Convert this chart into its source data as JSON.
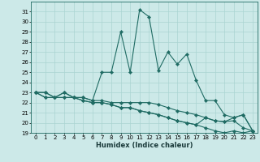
{
  "xlabel": "Humidex (Indice chaleur)",
  "bg_color": "#cce9e8",
  "line_color": "#1f6b63",
  "grid_color": "#aad4d2",
  "x_values": [
    0,
    1,
    2,
    3,
    4,
    5,
    6,
    7,
    8,
    9,
    10,
    11,
    12,
    13,
    14,
    15,
    16,
    17,
    18,
    19,
    20,
    21,
    22,
    23
  ],
  "series": [
    [
      23.0,
      23.0,
      22.5,
      23.0,
      22.5,
      22.5,
      22.2,
      25.0,
      25.0,
      29.0,
      25.0,
      31.2,
      30.5,
      25.2,
      27.0,
      25.8,
      26.8,
      24.2,
      22.2,
      22.2,
      20.8,
      20.5,
      20.8,
      19.2
    ],
    [
      23.0,
      23.0,
      22.5,
      23.0,
      22.5,
      22.5,
      22.2,
      22.2,
      22.0,
      22.0,
      22.0,
      22.0,
      22.0,
      21.8,
      21.5,
      21.2,
      21.0,
      20.8,
      20.5,
      20.2,
      20.1,
      20.2,
      19.5,
      19.2
    ],
    [
      23.0,
      22.5,
      22.5,
      22.5,
      22.5,
      22.2,
      22.0,
      22.0,
      21.8,
      21.5,
      21.5,
      21.2,
      21.0,
      20.8,
      20.5,
      20.2,
      20.0,
      19.8,
      20.5,
      20.2,
      20.1,
      20.5,
      20.8,
      19.2
    ],
    [
      23.0,
      22.5,
      22.5,
      22.5,
      22.5,
      22.2,
      22.0,
      22.0,
      21.8,
      21.5,
      21.5,
      21.2,
      21.0,
      20.8,
      20.5,
      20.2,
      20.0,
      19.8,
      19.5,
      19.2,
      19.0,
      19.2,
      19.0,
      19.2
    ]
  ],
  "ylim": [
    19,
    32
  ],
  "yticks": [
    19,
    20,
    21,
    22,
    23,
    24,
    25,
    26,
    27,
    28,
    29,
    30,
    31
  ],
  "xlim": [
    -0.5,
    23.5
  ],
  "xticks": [
    0,
    1,
    2,
    3,
    4,
    5,
    6,
    7,
    8,
    9,
    10,
    11,
    12,
    13,
    14,
    15,
    16,
    17,
    18,
    19,
    20,
    21,
    22,
    23
  ],
  "marker_size": 2.2,
  "line_width": 0.8,
  "tick_fontsize": 5.0,
  "xlabel_fontsize": 6.0
}
